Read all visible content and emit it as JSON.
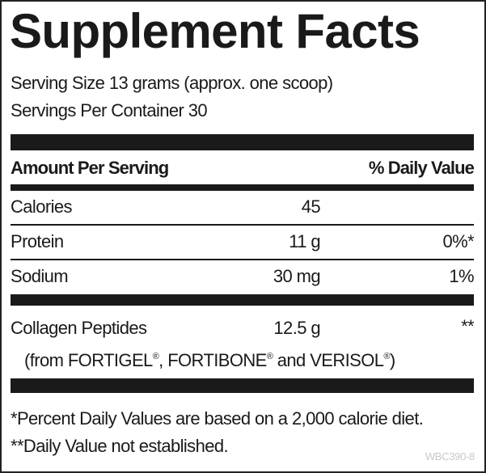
{
  "title": "Supplement Facts",
  "serving_size": "Serving Size 13 grams (approx. one scoop)",
  "servings_per_container": "Servings Per Container 30",
  "header": {
    "amount": "Amount Per Serving",
    "dv": "% Daily Value"
  },
  "rows": [
    {
      "name": "Calories",
      "amount": "45",
      "dv": ""
    },
    {
      "name": "Protein",
      "amount": "11 g",
      "dv": "0%*"
    },
    {
      "name": "Sodium",
      "amount": "30 mg",
      "dv": "1%"
    },
    {
      "name": "Collagen Peptides",
      "amount": "12.5 g",
      "dv": "**"
    }
  ],
  "source": {
    "prefix": "(from FORTIGEL",
    "reg": "®",
    "mid1": ", FORTIBONE",
    "mid2": " and VERISOL",
    "suffix": ")"
  },
  "footnotes": [
    "*Percent Daily Values are based on a 2,000 calorie diet.",
    "**Daily Value not established."
  ],
  "code": "WBC390-8"
}
